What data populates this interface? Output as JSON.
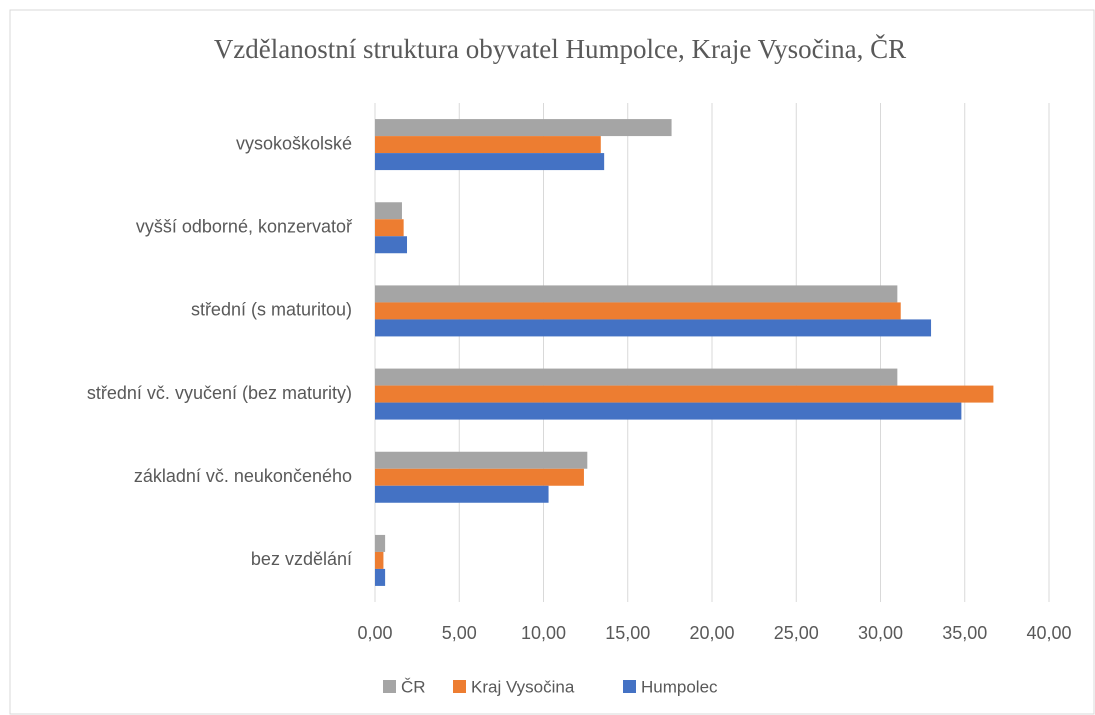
{
  "chart_data": {
    "type": "hbar",
    "title": "Vzdělanostní struktura obyvatel Humpolce, Kraje Vysočina, ČR",
    "categories": [
      "vysokoškolské",
      "vyšší odborné, konzervatoř",
      "střední (s maturitou)",
      "střední vč. vyučení (bez maturity)",
      "základní vč. neukončeného",
      "bez vzdělání"
    ],
    "series": [
      {
        "name": "ČR",
        "color": "#a5a5a5",
        "values": [
          17.6,
          1.6,
          31.0,
          31.0,
          12.6,
          0.6
        ]
      },
      {
        "name": "Kraj Vysočina",
        "color": "#ed7d31",
        "values": [
          13.4,
          1.7,
          31.2,
          36.7,
          12.4,
          0.5
        ]
      },
      {
        "name": "Humpolec",
        "color": "#4472c4",
        "values": [
          13.6,
          1.9,
          33.0,
          34.8,
          10.3,
          0.6
        ]
      }
    ],
    "xlim": [
      0,
      40
    ],
    "xticks": [
      {
        "value": 0,
        "label": "0,00"
      },
      {
        "value": 5,
        "label": "5,00"
      },
      {
        "value": 10,
        "label": "10,00"
      },
      {
        "value": 15,
        "label": "15,00"
      },
      {
        "value": 20,
        "label": "20,00"
      },
      {
        "value": 25,
        "label": "25,00"
      },
      {
        "value": 30,
        "label": "30,00"
      },
      {
        "value": 35,
        "label": "35,00"
      },
      {
        "value": 40,
        "label": "40,00"
      }
    ],
    "grid": true,
    "legend": "bottom"
  }
}
